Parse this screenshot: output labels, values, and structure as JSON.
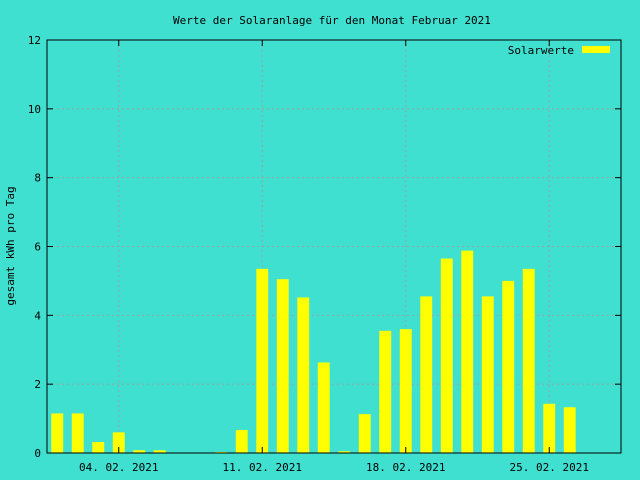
{
  "colors": {
    "background": "#40e0d0",
    "bar": "#ffff00",
    "grid": "#a0a0a0",
    "axis": "#000000"
  },
  "chart_data": {
    "type": "bar",
    "title": "Werte der Solaranlage für den Monat Februar 2021",
    "xlabel": "",
    "ylabel": "gesamt kWh pro Tag",
    "ylim": [
      0,
      12
    ],
    "yticks": [
      0,
      2,
      4,
      6,
      8,
      10,
      12
    ],
    "grid": true,
    "legend": "top-right",
    "x_tick_labels": [
      {
        "day": 4,
        "label": "04. 02. 2021"
      },
      {
        "day": 11,
        "label": "11. 02. 2021"
      },
      {
        "day": 18,
        "label": "18. 02. 2021"
      },
      {
        "day": 25,
        "label": "25. 02. 2021"
      }
    ],
    "x_range_days": [
      0.5,
      28.5
    ],
    "series": [
      {
        "name": "Solarwerte",
        "days": [
          1,
          2,
          3,
          4,
          5,
          6,
          7,
          8,
          9,
          10,
          11,
          12,
          13,
          14,
          15,
          16,
          17,
          18,
          19,
          20,
          21,
          22,
          23,
          24,
          25,
          26,
          27,
          28
        ],
        "values": [
          1.15,
          1.15,
          0.32,
          0.6,
          0.08,
          0.08,
          0,
          0,
          0.03,
          0.67,
          5.35,
          5.05,
          4.52,
          2.63,
          0.05,
          1.13,
          3.55,
          3.6,
          4.55,
          5.65,
          5.88,
          4.55,
          5.0,
          5.35,
          1.43,
          1.33,
          0,
          0
        ]
      }
    ]
  }
}
